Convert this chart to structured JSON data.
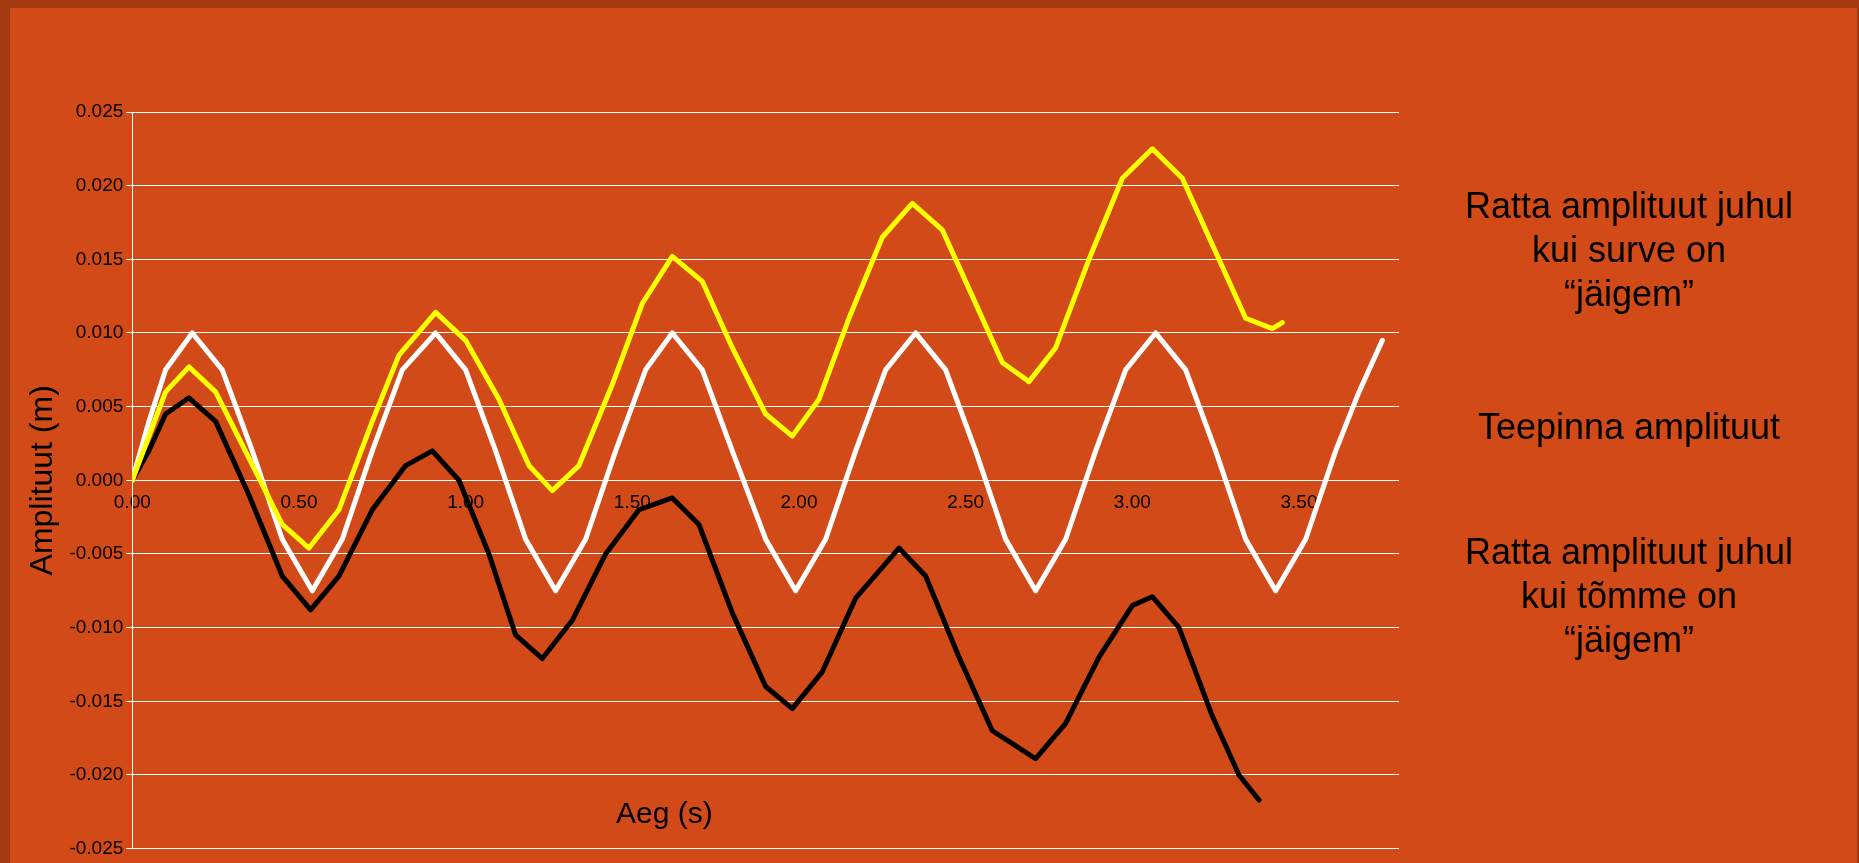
{
  "chart_data": {
    "type": "line",
    "xlabel": "Aeg (s)",
    "ylabel": "Amplituut (m)",
    "xlim": [
      0,
      3.8
    ],
    "xticks": [
      {
        "value": 0,
        "label": "0.00"
      },
      {
        "value": 0.5,
        "label": "0.50"
      },
      {
        "value": 1,
        "label": "1.00"
      },
      {
        "value": 1.5,
        "label": "1.50"
      },
      {
        "value": 2,
        "label": "2.00"
      },
      {
        "value": 2.5,
        "label": "2.50"
      },
      {
        "value": 3,
        "label": "3.00"
      },
      {
        "value": 3.5,
        "label": "3.50"
      }
    ],
    "ylim": [
      -0.025,
      0.025
    ],
    "yticks": [
      {
        "value": -0.025,
        "label": "-0.025"
      },
      {
        "value": -0.02,
        "label": "-0.020"
      },
      {
        "value": -0.015,
        "label": "-0.015"
      },
      {
        "value": -0.01,
        "label": "-0.010"
      },
      {
        "value": -0.005,
        "label": "-0.005"
      },
      {
        "value": 0,
        "label": "0.000"
      },
      {
        "value": 0.005,
        "label": "0.005"
      },
      {
        "value": 0.01,
        "label": "0.010"
      },
      {
        "value": 0.015,
        "label": "0.015"
      },
      {
        "value": 0.02,
        "label": "0.020"
      },
      {
        "value": 0.025,
        "label": "0.025"
      }
    ],
    "grid": "y",
    "legend": false,
    "marker": "none",
    "line_style": "solid",
    "series": [
      {
        "name": "Ratta amplituut juhul kui surve on “jäigem”",
        "color": "#ffff00",
        "x": [
          0,
          0.05,
          0.1,
          0.17,
          0.25,
          0.35,
          0.45,
          0.53,
          0.62,
          0.72,
          0.8,
          0.91,
          1.0,
          1.1,
          1.19,
          1.26,
          1.34,
          1.44,
          1.53,
          1.62,
          1.71,
          1.8,
          1.9,
          1.98,
          2.06,
          2.15,
          2.25,
          2.34,
          2.43,
          2.52,
          2.61,
          2.69,
          2.77,
          2.87,
          2.97,
          3.06,
          3.15,
          3.25,
          3.34,
          3.42,
          3.45
        ],
        "values": [
          0,
          0.003,
          0.006,
          0.0077,
          0.006,
          0.0015,
          -0.003,
          -0.0046,
          -0.002,
          0.004,
          0.0085,
          0.0114,
          0.0095,
          0.0055,
          0.001,
          -0.0007,
          0.001,
          0.0065,
          0.012,
          0.0152,
          0.0135,
          0.009,
          0.0045,
          0.003,
          0.0055,
          0.011,
          0.0165,
          0.0188,
          0.017,
          0.0125,
          0.008,
          0.0067,
          0.009,
          0.015,
          0.0205,
          0.0225,
          0.0205,
          0.0155,
          0.011,
          0.0103,
          0.0107
        ]
      },
      {
        "name": "Teepinna amplituut",
        "color": "#ffffff",
        "x": [
          0,
          0.05,
          0.1,
          0.18,
          0.27,
          0.36,
          0.45,
          0.54,
          0.63,
          0.72,
          0.81,
          0.91,
          1.0,
          1.09,
          1.18,
          1.27,
          1.36,
          1.45,
          1.54,
          1.62,
          1.71,
          1.8,
          1.9,
          1.99,
          2.08,
          2.17,
          2.26,
          2.35,
          2.44,
          2.53,
          2.62,
          2.71,
          2.8,
          2.89,
          2.98,
          3.07,
          3.16,
          3.25,
          3.34,
          3.43,
          3.52,
          3.61,
          3.68,
          3.75
        ],
        "values": [
          0,
          0.004,
          0.0075,
          0.01,
          0.0075,
          0.002,
          -0.004,
          -0.0075,
          -0.004,
          0.002,
          0.0075,
          0.01,
          0.0075,
          0.002,
          -0.004,
          -0.0075,
          -0.004,
          0.002,
          0.0075,
          0.01,
          0.0075,
          0.002,
          -0.004,
          -0.0075,
          -0.004,
          0.002,
          0.0075,
          0.01,
          0.0075,
          0.002,
          -0.004,
          -0.0075,
          -0.004,
          0.002,
          0.0075,
          0.01,
          0.0075,
          0.002,
          -0.004,
          -0.0075,
          -0.004,
          0.002,
          0.006,
          0.0095
        ]
      },
      {
        "name": "Ratta amplituut juhul kui tõmme on “jäigem”",
        "color": "#000000",
        "x": [
          0,
          0.05,
          0.1,
          0.17,
          0.25,
          0.35,
          0.45,
          0.535,
          0.62,
          0.72,
          0.82,
          0.9,
          0.98,
          1.07,
          1.15,
          1.23,
          1.32,
          1.42,
          1.52,
          1.62,
          1.7,
          1.8,
          1.9,
          1.98,
          2.07,
          2.17,
          2.3,
          2.38,
          2.48,
          2.58,
          2.71,
          2.8,
          2.9,
          3.0,
          3.06,
          3.14,
          3.24,
          3.32,
          3.38
        ],
        "values": [
          0,
          0.002,
          0.0045,
          0.0056,
          0.004,
          -0.001,
          -0.0065,
          -0.0088,
          -0.0065,
          -0.002,
          0.001,
          0.002,
          0,
          -0.005,
          -0.0105,
          -0.0121,
          -0.0095,
          -0.005,
          -0.002,
          -0.0012,
          -0.003,
          -0.009,
          -0.014,
          -0.0155,
          -0.013,
          -0.008,
          -0.0046,
          -0.0065,
          -0.012,
          -0.017,
          -0.0189,
          -0.0165,
          -0.012,
          -0.0085,
          -0.0079,
          -0.01,
          -0.016,
          -0.02,
          -0.0217
        ]
      }
    ]
  }
}
